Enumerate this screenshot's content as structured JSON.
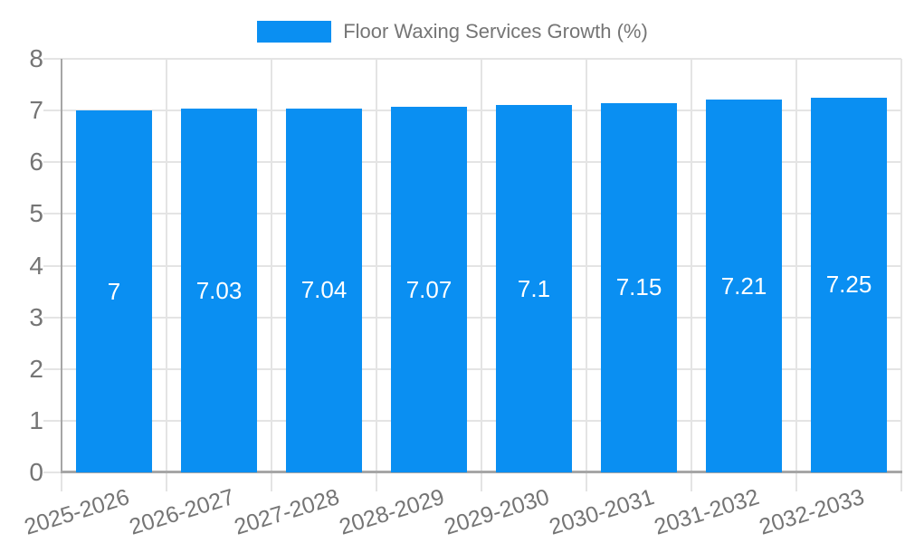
{
  "chart_data": {
    "type": "bar",
    "title": "",
    "legend_label": "Floor Waxing Services Growth (%)",
    "categories": [
      "2025-2026",
      "2026-2027",
      "2027-2028",
      "2028-2029",
      "2029-2030",
      "2030-2031",
      "2031-2032",
      "2032-2033"
    ],
    "series": [
      {
        "name": "Floor Waxing Services Growth (%)",
        "values": [
          7,
          7.03,
          7.04,
          7.07,
          7.1,
          7.15,
          7.21,
          7.25
        ],
        "value_labels": [
          "7",
          "7.03",
          "7.04",
          "7.07",
          "7.1",
          "7.15",
          "7.21",
          "7.25"
        ]
      }
    ],
    "xlabel": "",
    "ylabel": "",
    "ylim": [
      0,
      8
    ],
    "yticks": [
      0,
      1,
      2,
      3,
      4,
      5,
      6,
      7,
      8
    ],
    "grid": "on",
    "legend_position": "top-center",
    "x_label_rotation_deg": -17,
    "colors": {
      "bar": "#0a8ff2",
      "bar_value_label": "#ffffff",
      "axis_text": "#757575",
      "legend_text": "#757575",
      "gridline": "#e4e4e4",
      "axis_line": "#a6a6a6",
      "background": "#ffffff"
    }
  }
}
